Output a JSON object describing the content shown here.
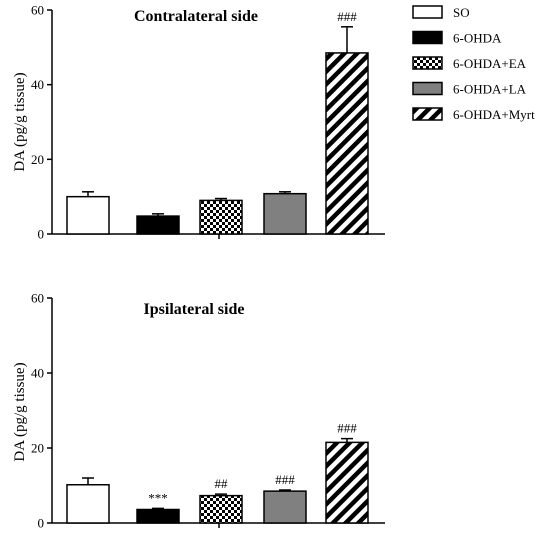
{
  "legend": [
    {
      "name": "SO",
      "pattern": "white"
    },
    {
      "name": "6-OHDA",
      "pattern": "black"
    },
    {
      "name": "6-OHDA+EA",
      "pattern": "checker"
    },
    {
      "name": "6-OHDA+LA",
      "pattern": "gray"
    },
    {
      "name": "6-OHDA+Myrt",
      "pattern": "hatch"
    }
  ],
  "colors": {
    "black": "#000000",
    "gray": "#808080",
    "white": "#ffffff"
  },
  "chart_data": [
    {
      "type": "bar",
      "title": "Contralateral side",
      "ylabel": "DA (pg/g tissue)",
      "ylim": [
        0,
        60
      ],
      "yticks": [
        "0",
        "20",
        "40",
        "60"
      ],
      "categories": [
        "SO",
        "6-OHDA",
        "6-OHDA+EA",
        "6-OHDA+LA",
        "6-OHDA+Myrt"
      ],
      "values": [
        10.0,
        4.8,
        9.0,
        10.8,
        48.5
      ],
      "errors": [
        1.3,
        0.6,
        0.5,
        0.5,
        7.0
      ],
      "annotations": [
        "",
        "",
        "",
        "",
        "###"
      ],
      "grid": false,
      "legend_position": "right"
    },
    {
      "type": "bar",
      "title": "Ipsilateral side",
      "ylabel": "DA (pg/g tissue)",
      "ylim": [
        0,
        60
      ],
      "yticks": [
        "0",
        "20",
        "40",
        "60"
      ],
      "categories": [
        "SO",
        "6-OHDA",
        "6-OHDA+EA",
        "6-OHDA+LA",
        "6-OHDA+Myrt"
      ],
      "values": [
        10.2,
        3.6,
        7.3,
        8.5,
        21.5
      ],
      "errors": [
        1.8,
        0.3,
        0.4,
        0.3,
        1.0
      ],
      "annotations": [
        "",
        "***",
        "##",
        "###",
        "###"
      ],
      "grid": false
    }
  ]
}
